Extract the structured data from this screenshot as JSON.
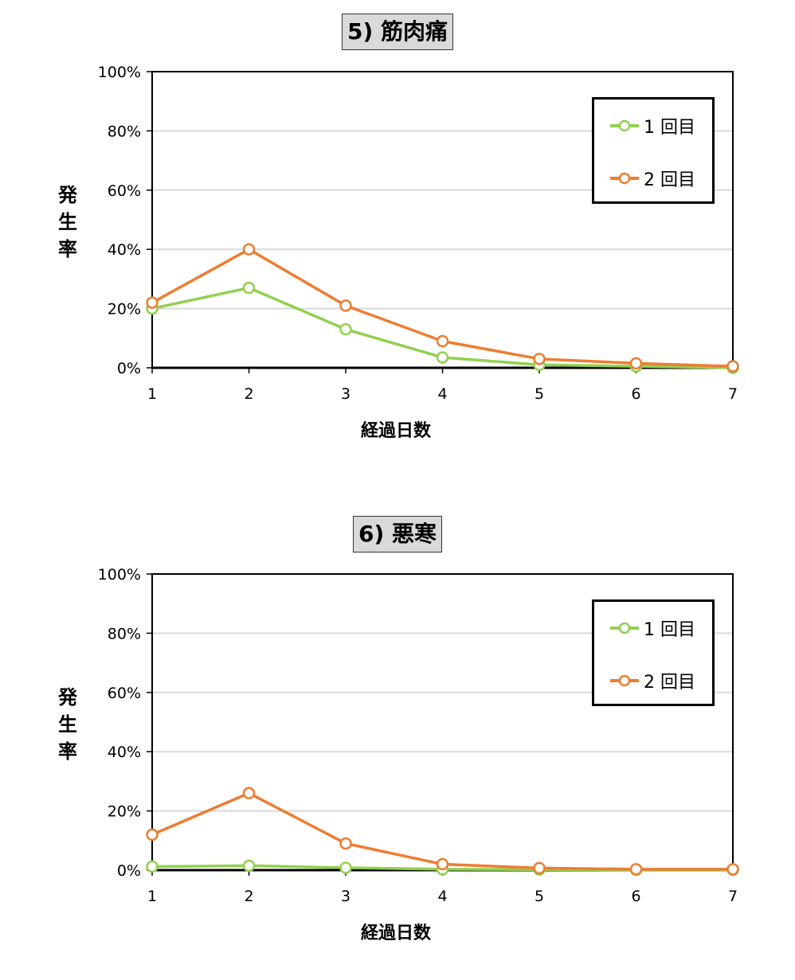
{
  "chart_data": [
    {
      "type": "line",
      "title": "5) 筋肉痛",
      "xlabel": "経過日数",
      "ylabel": "発生率",
      "categories": [
        "1",
        "2",
        "3",
        "4",
        "5",
        "6",
        "7"
      ],
      "ylim": [
        0,
        100
      ],
      "yticks": [
        "0%",
        "20%",
        "40%",
        "60%",
        "80%",
        "100%"
      ],
      "grid": true,
      "legend_position": "top-right",
      "series": [
        {
          "name": "1 回目",
          "color": "#92d050",
          "values": [
            20,
            27,
            13,
            3.5,
            1,
            0.5,
            0
          ]
        },
        {
          "name": "2 回目",
          "color": "#ed7d31",
          "values": [
            22,
            40,
            21,
            9,
            3,
            1.5,
            0.5
          ]
        }
      ]
    },
    {
      "type": "line",
      "title": "6) 悪寒",
      "xlabel": "経過日数",
      "ylabel": "発生率",
      "categories": [
        "1",
        "2",
        "3",
        "4",
        "5",
        "6",
        "7"
      ],
      "ylim": [
        0,
        100
      ],
      "yticks": [
        "0%",
        "20%",
        "40%",
        "60%",
        "80%",
        "100%"
      ],
      "grid": true,
      "legend_position": "top-right",
      "series": [
        {
          "name": "1 回目",
          "color": "#92d050",
          "values": [
            1.2,
            1.5,
            0.8,
            0.3,
            0.2,
            0.1,
            0.1
          ]
        },
        {
          "name": "2 回目",
          "color": "#ed7d31",
          "values": [
            12,
            26,
            9,
            2,
            0.7,
            0.3,
            0.3
          ]
        }
      ]
    }
  ]
}
